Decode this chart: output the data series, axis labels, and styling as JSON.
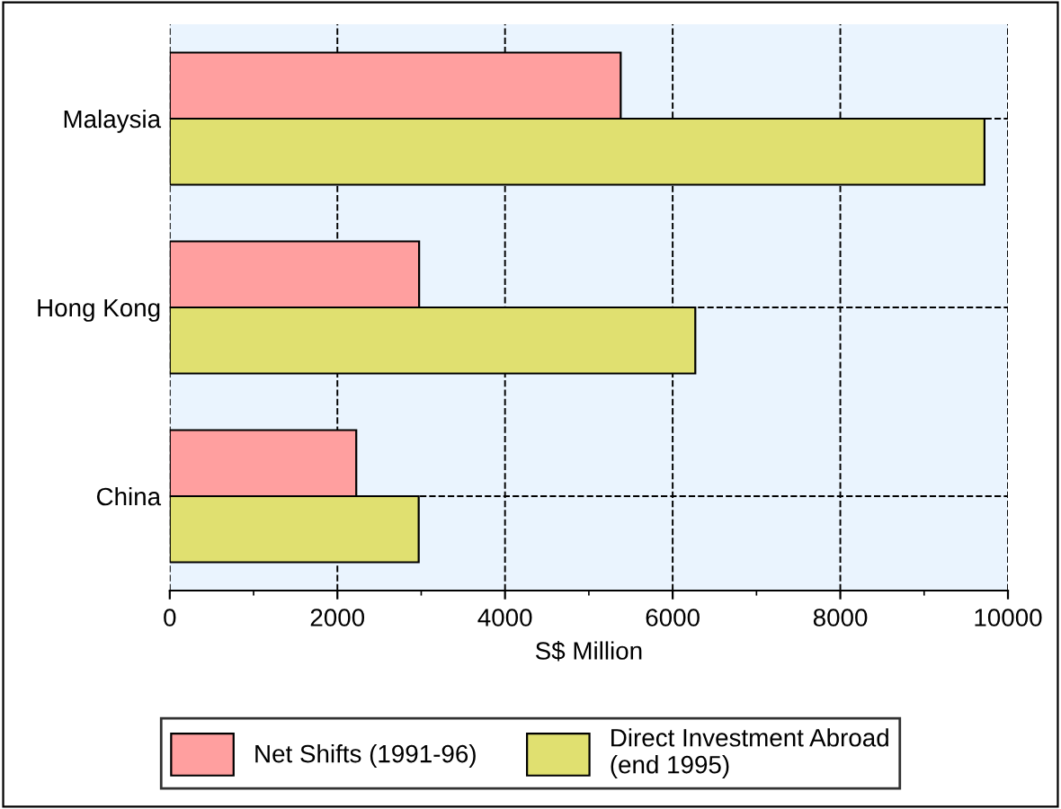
{
  "chart_data": {
    "type": "bar",
    "orientation": "horizontal",
    "xlabel": "S$ Million",
    "categories": [
      "Malaysia",
      "Hong Kong",
      "China"
    ],
    "series": [
      {
        "name": "Net Shifts (1991-96)",
        "color": "#ff9f9f",
        "values": [
          5380,
          2975,
          2225
        ]
      },
      {
        "name": "Direct Investment Abroad\n(end 1995)",
        "color": "#e0e070",
        "values": [
          9720,
          6270,
          2970
        ]
      }
    ],
    "xlim": [
      0,
      10000
    ],
    "xticks": [
      0,
      2000,
      4000,
      6000,
      8000,
      10000
    ],
    "grid": true,
    "legend": "bottom"
  }
}
